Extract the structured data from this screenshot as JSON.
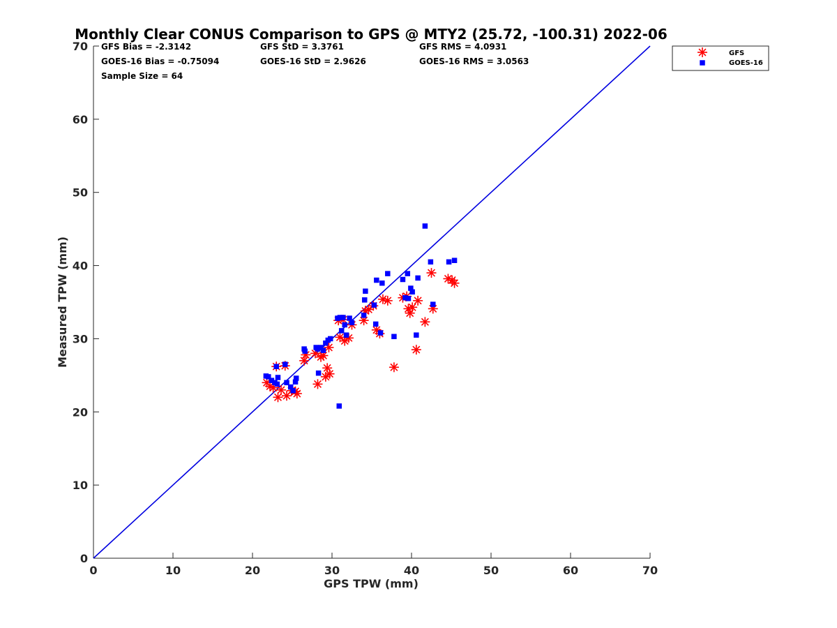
{
  "chart_data": {
    "type": "scatter",
    "title": "Monthly Clear CONUS Comparison to GPS @ MTY2 (25.72, -100.31) 2022-06",
    "xlabel": "GPS TPW (mm)",
    "ylabel": "Measured TPW (mm)",
    "xlim": [
      0,
      70
    ],
    "ylim": [
      0,
      70
    ],
    "xticks": [
      0,
      10,
      20,
      30,
      40,
      50,
      60,
      70
    ],
    "yticks": [
      0,
      10,
      20,
      30,
      40,
      50,
      60,
      70
    ],
    "grid": false,
    "legend_position": "top-right outside",
    "stats": [
      [
        "GFS Bias = -2.3142",
        "GFS StD = 3.3761",
        "GFS RMS = 4.0931"
      ],
      [
        "GOES-16 Bias = -0.75094",
        "GOES-16 StD = 2.9626",
        "GOES-16 RMS = 3.0563"
      ],
      [
        "Sample Size = 64"
      ]
    ],
    "reference_line": {
      "x": [
        0,
        70
      ],
      "y": [
        0,
        70
      ],
      "color": "#0000e0"
    },
    "series": [
      {
        "name": "GFS",
        "marker": "asterisk",
        "color": "#ff0000",
        "points": [
          [
            21.8,
            24.0
          ],
          [
            22.2,
            23.5
          ],
          [
            22.6,
            23.3
          ],
          [
            23.0,
            26.2
          ],
          [
            23.2,
            22.0
          ],
          [
            23.6,
            23.0
          ],
          [
            24.1,
            26.3
          ],
          [
            24.3,
            22.2
          ],
          [
            24.9,
            22.9
          ],
          [
            25.4,
            22.8
          ],
          [
            25.6,
            22.5
          ],
          [
            26.5,
            27.0
          ],
          [
            26.7,
            27.8
          ],
          [
            27.9,
            28.0
          ],
          [
            28.2,
            23.8
          ],
          [
            28.6,
            27.5
          ],
          [
            28.9,
            27.7
          ],
          [
            29.2,
            24.8
          ],
          [
            29.4,
            26.0
          ],
          [
            29.7,
            25.2
          ],
          [
            29.6,
            28.8
          ],
          [
            30.8,
            32.5
          ],
          [
            31.0,
            30.2
          ],
          [
            31.4,
            32.6
          ],
          [
            31.6,
            29.7
          ],
          [
            32.1,
            30.1
          ],
          [
            32.5,
            31.9
          ],
          [
            34.0,
            32.5
          ],
          [
            34.2,
            33.8
          ],
          [
            34.6,
            34.0
          ],
          [
            35.2,
            34.5
          ],
          [
            35.6,
            31.2
          ],
          [
            36.0,
            30.7
          ],
          [
            36.4,
            35.4
          ],
          [
            37.0,
            35.2
          ],
          [
            37.8,
            26.1
          ],
          [
            38.9,
            35.6
          ],
          [
            39.4,
            35.8
          ],
          [
            39.6,
            34.1
          ],
          [
            39.8,
            33.5
          ],
          [
            40.1,
            34.3
          ],
          [
            40.6,
            28.5
          ],
          [
            40.8,
            35.2
          ],
          [
            41.7,
            32.3
          ],
          [
            42.5,
            39.0
          ],
          [
            42.7,
            34.1
          ],
          [
            44.6,
            38.2
          ],
          [
            45.1,
            38.0
          ],
          [
            45.4,
            37.6
          ]
        ]
      },
      {
        "name": "GOES-16",
        "marker": "square",
        "color": "#0000ff",
        "points": [
          [
            21.7,
            24.9
          ],
          [
            22.0,
            24.8
          ],
          [
            22.4,
            24.3
          ],
          [
            22.8,
            24.0
          ],
          [
            23.0,
            26.2
          ],
          [
            23.1,
            23.8
          ],
          [
            23.2,
            24.7
          ],
          [
            24.1,
            26.5
          ],
          [
            24.3,
            24.0
          ],
          [
            24.8,
            23.4
          ],
          [
            25.1,
            22.9
          ],
          [
            25.4,
            24.1
          ],
          [
            25.5,
            24.6
          ],
          [
            26.6,
            28.3
          ],
          [
            26.5,
            28.6
          ],
          [
            28.0,
            28.8
          ],
          [
            28.3,
            25.3
          ],
          [
            28.2,
            28.6
          ],
          [
            28.6,
            28.8
          ],
          [
            28.9,
            28.4
          ],
          [
            29.2,
            29.4
          ],
          [
            29.5,
            29.8
          ],
          [
            29.8,
            30.0
          ],
          [
            30.7,
            32.8
          ],
          [
            30.9,
            20.8
          ],
          [
            31.0,
            32.9
          ],
          [
            31.2,
            31.1
          ],
          [
            31.4,
            32.9
          ],
          [
            31.6,
            31.9
          ],
          [
            31.8,
            30.5
          ],
          [
            32.2,
            32.8
          ],
          [
            32.5,
            32.2
          ],
          [
            34.0,
            33.2
          ],
          [
            34.1,
            35.3
          ],
          [
            34.2,
            36.5
          ],
          [
            35.3,
            34.6
          ],
          [
            35.5,
            32.0
          ],
          [
            35.6,
            38.0
          ],
          [
            36.1,
            30.8
          ],
          [
            36.3,
            37.6
          ],
          [
            37.0,
            38.9
          ],
          [
            37.8,
            30.3
          ],
          [
            38.9,
            38.1
          ],
          [
            39.2,
            35.6
          ],
          [
            39.5,
            38.9
          ],
          [
            39.6,
            35.5
          ],
          [
            39.9,
            36.9
          ],
          [
            40.1,
            36.4
          ],
          [
            40.6,
            30.5
          ],
          [
            40.8,
            38.3
          ],
          [
            41.7,
            45.4
          ],
          [
            42.4,
            40.5
          ],
          [
            42.7,
            34.7
          ],
          [
            44.7,
            40.5
          ],
          [
            45.4,
            40.7
          ]
        ]
      }
    ]
  }
}
